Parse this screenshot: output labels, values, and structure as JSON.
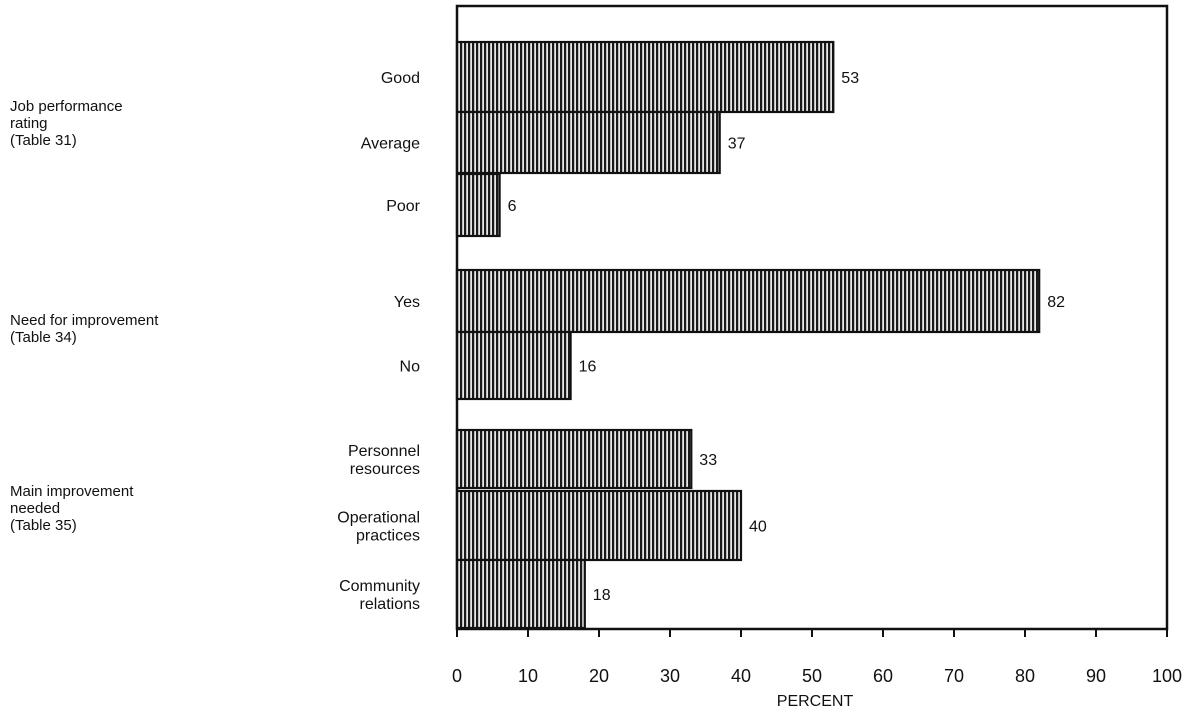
{
  "chart_data": {
    "type": "bar",
    "orientation": "horizontal",
    "xlabel": "PERCENT",
    "xlim": [
      0,
      100
    ],
    "xticks": [
      "0",
      "10",
      "20",
      "30",
      "40",
      "50",
      "60",
      "70",
      "80",
      "90",
      "100"
    ],
    "grid": false,
    "groups": [
      {
        "label": [
          "Job performance",
          "rating",
          "(Table 31)"
        ],
        "bars": [
          {
            "label": [
              "Good"
            ],
            "value": 53
          },
          {
            "label": [
              "Average"
            ],
            "value": 37
          },
          {
            "label": [
              "Poor"
            ],
            "value": 6
          }
        ]
      },
      {
        "label": [
          "Need for improvement",
          "(Table 34)"
        ],
        "bars": [
          {
            "label": [
              "Yes"
            ],
            "value": 82
          },
          {
            "label": [
              "No"
            ],
            "value": 16
          }
        ]
      },
      {
        "label": [
          "Main improvement",
          "needed",
          "(Table 35)"
        ],
        "bars": [
          {
            "label": [
              "Personnel",
              "resources"
            ],
            "value": 33
          },
          {
            "label": [
              "Operational",
              "practices"
            ],
            "value": 40
          },
          {
            "label": [
              "Community",
              "relations"
            ],
            "value": 18
          }
        ]
      }
    ]
  },
  "colors": {
    "ink": "#111111",
    "bar_stripe": "#1a1a1a",
    "bar_gap": "#e6e6e6",
    "background": "#ffffff"
  }
}
